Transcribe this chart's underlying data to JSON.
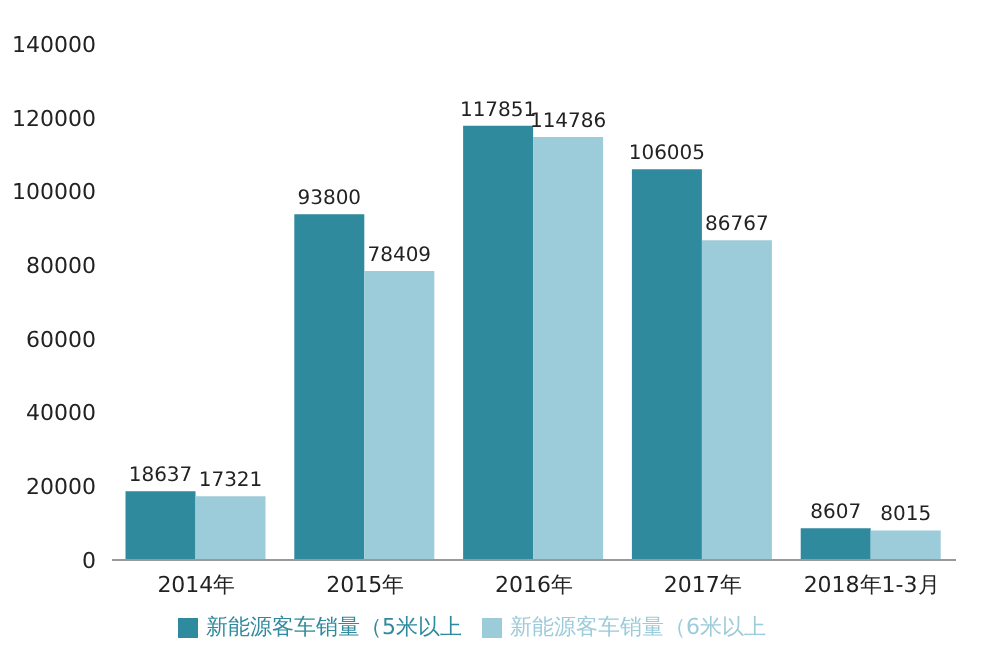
{
  "chart_data": {
    "type": "bar",
    "categories": [
      "2014年",
      "2015年",
      "2016年",
      "2017年",
      "2018年1-3月"
    ],
    "series": [
      {
        "name": "新能源客车销量（5米以上",
        "color": "#2f8a9e",
        "values": [
          18637,
          93800,
          117851,
          106005,
          8607
        ]
      },
      {
        "name": "新能源客车销量（6米以上",
        "color": "#9ccbd9",
        "values": [
          17321,
          78409,
          114786,
          86767,
          8015
        ]
      }
    ],
    "ylim": [
      0,
      140000
    ],
    "yticks": [
      0,
      20000,
      40000,
      60000,
      80000,
      100000,
      120000,
      140000
    ],
    "grid": false,
    "legend": "bottom",
    "data_labels": true
  }
}
